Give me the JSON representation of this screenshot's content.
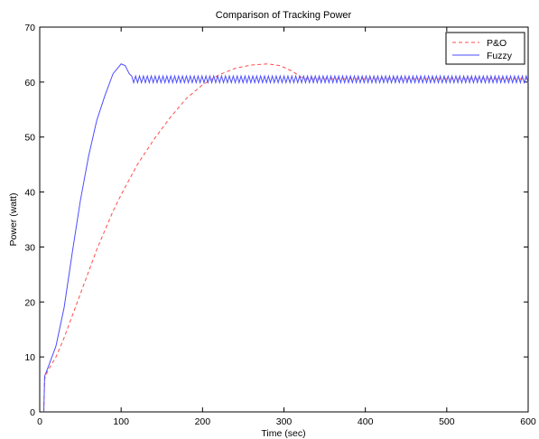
{
  "chart_data": {
    "type": "line",
    "title": "Comparison of Tracking Power",
    "xlabel": "Time (sec)",
    "ylabel": "Power (watt)",
    "xlim": [
      0,
      600
    ],
    "ylim": [
      0,
      70
    ],
    "xticks": [
      0,
      100,
      200,
      300,
      400,
      500,
      600
    ],
    "yticks": [
      0,
      10,
      20,
      30,
      40,
      50,
      60,
      70
    ],
    "grid": false,
    "legend_position": "top-right",
    "series": [
      {
        "name": "P&O",
        "color": "#ff4d4d",
        "style": "dashed",
        "x": [
          5,
          6,
          10,
          20,
          30,
          40,
          50,
          60,
          70,
          80,
          90,
          100,
          120,
          140,
          160,
          180,
          200,
          220,
          240,
          260,
          280,
          295,
          310,
          320,
          325,
          600
        ],
        "y": [
          0,
          6,
          7.5,
          10,
          13.5,
          17.5,
          21.5,
          25.5,
          29.5,
          33,
          36.5,
          39.5,
          45,
          49.5,
          53.5,
          57,
          59.5,
          61.3,
          62.5,
          63.1,
          63.3,
          63,
          62,
          61,
          60.6,
          60.6
        ]
      },
      {
        "name": "Fuzzy",
        "color": "#4d4dff",
        "style": "solid",
        "x": [
          5,
          6,
          10,
          20,
          30,
          40,
          50,
          60,
          70,
          80,
          90,
          100,
          105,
          110,
          113,
          600
        ],
        "y": [
          0,
          6.5,
          8,
          12,
          19,
          29,
          38.5,
          46.5,
          53,
          57.5,
          61.5,
          63.3,
          63,
          61.5,
          60.5,
          60.5
        ],
        "oscillation": {
          "from": 113,
          "to": 600,
          "amplitude": 0.6
        }
      }
    ]
  }
}
